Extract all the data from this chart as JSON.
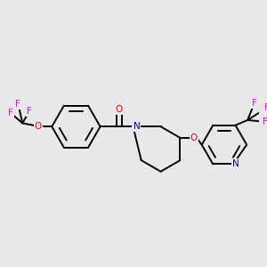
{
  "bg_color": "#e8e8e8",
  "bond_color": "#000000",
  "bond_width": 1.4,
  "atom_colors": {
    "O": "#ff0000",
    "N": "#0000cc",
    "F": "#ff00ff",
    "C": "#000000"
  },
  "font_size": 7.5,
  "figsize": [
    3.0,
    3.0
  ],
  "dpi": 100
}
